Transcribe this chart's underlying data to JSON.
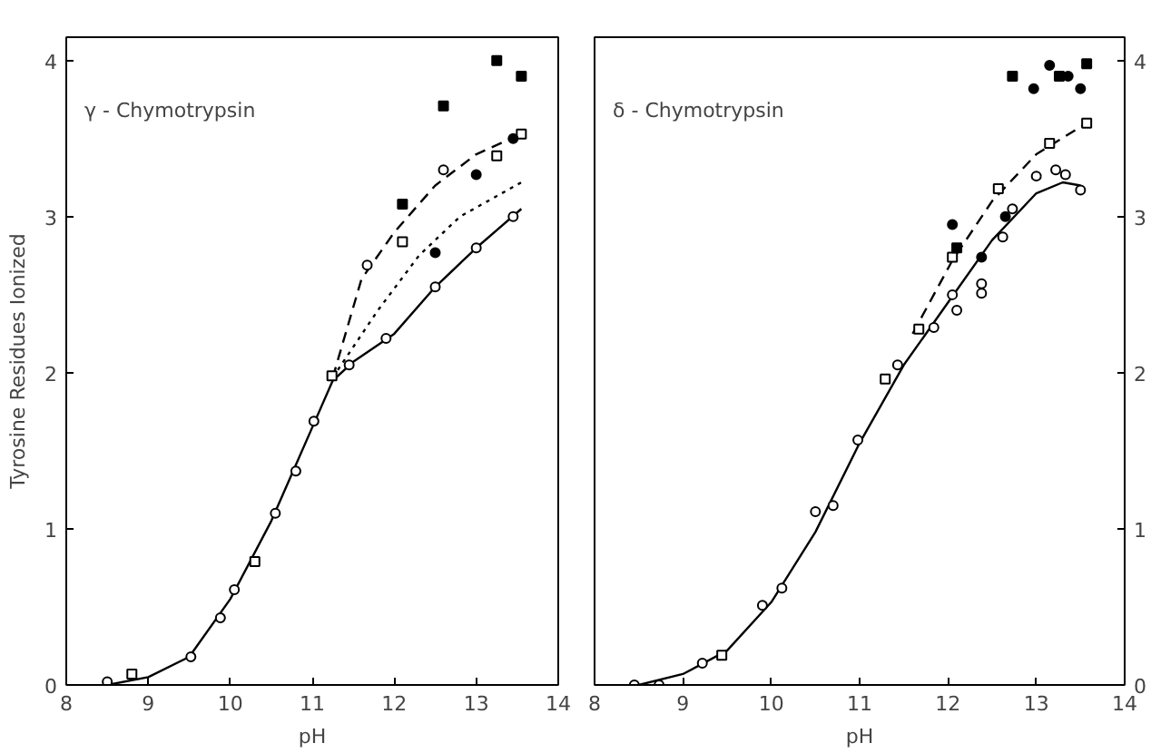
{
  "chart_data": [
    {
      "type": "scatter",
      "xlabel": "pH",
      "ylabel": "Tyrosine Residues Ionized",
      "annotations": [
        "γ - Chymotrypsin"
      ],
      "xlim": [
        8,
        14
      ],
      "xticks": [
        8,
        9,
        10,
        11,
        12,
        13,
        14
      ],
      "ylim": [
        0,
        4.15
      ],
      "yticks": [
        0,
        1,
        2,
        3,
        4
      ],
      "grid": false,
      "series": [
        {
          "type": "line",
          "line_style": "solid",
          "color": "#000000",
          "x": [
            8.5,
            9,
            9.5,
            10,
            10.5,
            11,
            11.25,
            11.5,
            12,
            12.5,
            13,
            13.55
          ],
          "values": [
            0,
            0.05,
            0.18,
            0.55,
            1.05,
            1.65,
            1.95,
            2.07,
            2.25,
            2.55,
            2.8,
            3.05
          ]
        },
        {
          "type": "line",
          "line_style": "dashed",
          "color": "#000000",
          "x": [
            11.25,
            11.6,
            12,
            12.5,
            13,
            13.55
          ],
          "values": [
            1.97,
            2.6,
            2.9,
            3.2,
            3.4,
            3.53
          ]
        },
        {
          "type": "line",
          "line_style": "dotted",
          "color": "#000000",
          "x": [
            11.25,
            11.8,
            12.3,
            12.8,
            13.55
          ],
          "values": [
            1.97,
            2.4,
            2.75,
            3.0,
            3.22
          ]
        },
        {
          "marker": "circle",
          "color": "#ffffff",
          "x": [
            8.5,
            9.52,
            9.88,
            10.05,
            10.55,
            10.8,
            11.02,
            11.45,
            11.9,
            12.5,
            13.0,
            13.45,
            11.67,
            12.6
          ],
          "values": [
            0.02,
            0.18,
            0.43,
            0.61,
            1.1,
            1.37,
            1.69,
            2.05,
            2.22,
            2.55,
            2.8,
            3.0,
            2.69,
            3.3
          ]
        },
        {
          "marker": "square",
          "color": "#ffffff",
          "x": [
            8.8,
            10.3,
            11.24,
            12.1,
            13.25,
            13.55
          ],
          "values": [
            0.07,
            0.79,
            1.98,
            2.84,
            3.39,
            3.53
          ]
        },
        {
          "marker": "circle",
          "color": "#000000",
          "x": [
            12.5,
            13.0,
            13.45
          ],
          "values": [
            2.77,
            3.27,
            3.5
          ]
        },
        {
          "marker": "square",
          "color": "#000000",
          "x": [
            12.1,
            12.6,
            13.25,
            13.55
          ],
          "values": [
            3.08,
            3.71,
            4.0,
            3.9
          ]
        }
      ]
    },
    {
      "type": "scatter",
      "xlabel": "pH",
      "annotations": [
        "δ - Chymotrypsin"
      ],
      "xlim": [
        8,
        14
      ],
      "xticks": [
        8,
        9,
        10,
        11,
        12,
        13,
        14
      ],
      "y2lim": [
        0,
        4.15
      ],
      "y2ticks": [
        0,
        1,
        2,
        3,
        4
      ],
      "grid": false,
      "series": [
        {
          "type": "line",
          "axis": "y2",
          "line_style": "solid",
          "color": "#000000",
          "x": [
            8.5,
            9,
            9.5,
            10,
            10.5,
            11,
            11.5,
            12,
            12.5,
            13,
            13.3,
            13.5
          ],
          "values": [
            0,
            0.07,
            0.22,
            0.53,
            0.98,
            1.55,
            2.05,
            2.45,
            2.85,
            3.15,
            3.22,
            3.2
          ]
        },
        {
          "type": "line",
          "axis": "y2",
          "line_style": "dashed",
          "color": "#000000",
          "x": [
            11.6,
            12.05,
            12.5,
            13.0,
            13.57
          ],
          "values": [
            2.25,
            2.72,
            3.1,
            3.4,
            3.6
          ]
        },
        {
          "axis": "y2",
          "marker": "circle",
          "color": "#ffffff",
          "x": [
            8.45,
            8.73,
            9.22,
            9.9,
            10.12,
            10.5,
            10.7,
            10.98,
            11.43,
            11.84,
            12.05,
            12.1,
            12.38,
            12.38,
            12.62,
            12.73,
            13.0,
            13.22,
            13.33,
            13.5
          ],
          "values": [
            0,
            0,
            0.14,
            0.51,
            0.62,
            1.11,
            1.15,
            1.57,
            2.05,
            2.29,
            2.5,
            2.4,
            2.57,
            2.51,
            2.87,
            3.05,
            3.26,
            3.3,
            3.27,
            3.17
          ]
        },
        {
          "axis": "y2",
          "marker": "square",
          "color": "#ffffff",
          "x": [
            9.44,
            11.29,
            11.67,
            12.05,
            12.57,
            13.15,
            13.57
          ],
          "values": [
            0.19,
            1.96,
            2.28,
            2.74,
            3.18,
            3.47,
            3.6
          ]
        },
        {
          "axis": "y2",
          "marker": "circle",
          "color": "#000000",
          "x": [
            12.05,
            12.38,
            12.65,
            12.97,
            13.15,
            13.36,
            13.5
          ],
          "values": [
            2.95,
            2.74,
            3.0,
            3.82,
            3.97,
            3.9,
            3.82
          ]
        },
        {
          "axis": "y2",
          "marker": "square",
          "color": "#000000",
          "x": [
            12.1,
            12.73,
            13.26,
            13.57
          ],
          "values": [
            2.8,
            3.9,
            3.9,
            3.98
          ]
        }
      ]
    }
  ]
}
